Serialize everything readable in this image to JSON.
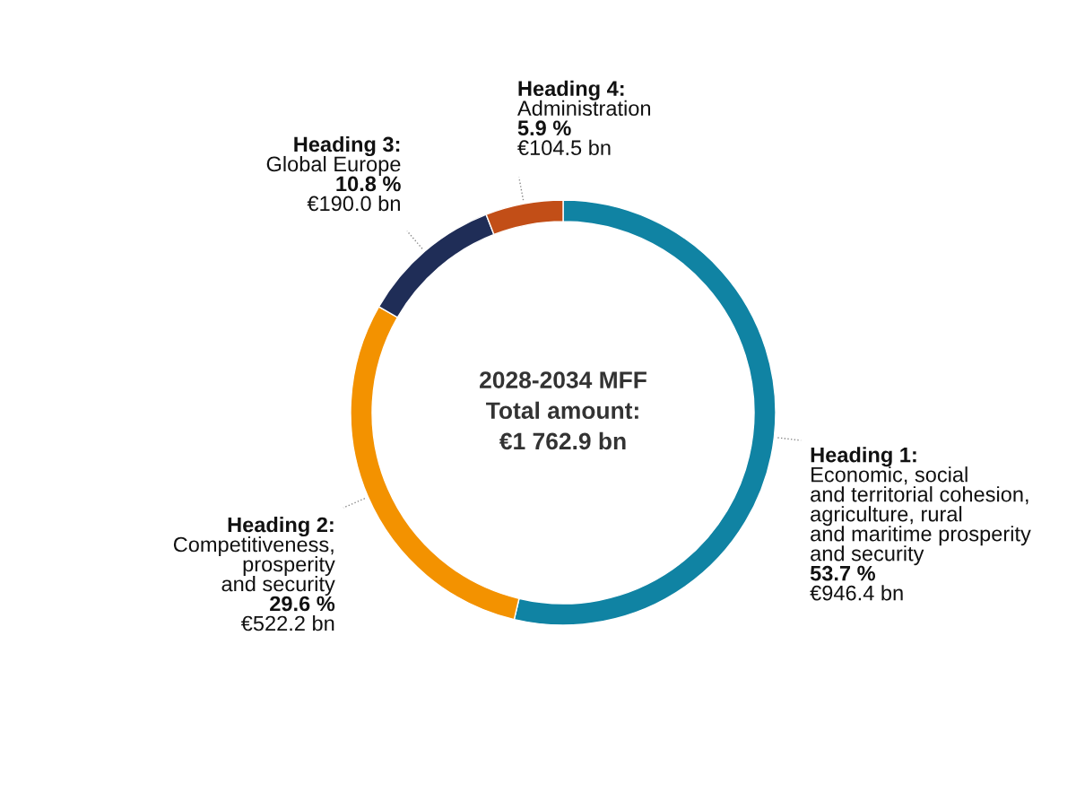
{
  "chart_data": {
    "type": "donut",
    "categories": [
      "Heading 1:\nEconomic, social\nand territorial cohesion,\nagriculture, rural\nand maritime prosperity\nand security\n53.7 %\n€946.4 bn",
      "Heading 2:\nCompetitiveness,\nprosperity\nand security\n29.6 %\n€522.2 bn",
      "Heading 3:\nGlobal Europe\n10.8 %\n€190.0 bn",
      "Heading 4:\nAdministration\n5.9 %\n€104.5 bn"
    ],
    "values": [
      53.7,
      29.6,
      10.8,
      5.9
    ],
    "colors": [
      "#1083a3",
      "#f39200",
      "#1f2d57",
      "#c24e17"
    ],
    "annotations": [
      "2028-2034 MFF\nTotal amount:\n€1 762.9 bn"
    ]
  }
}
